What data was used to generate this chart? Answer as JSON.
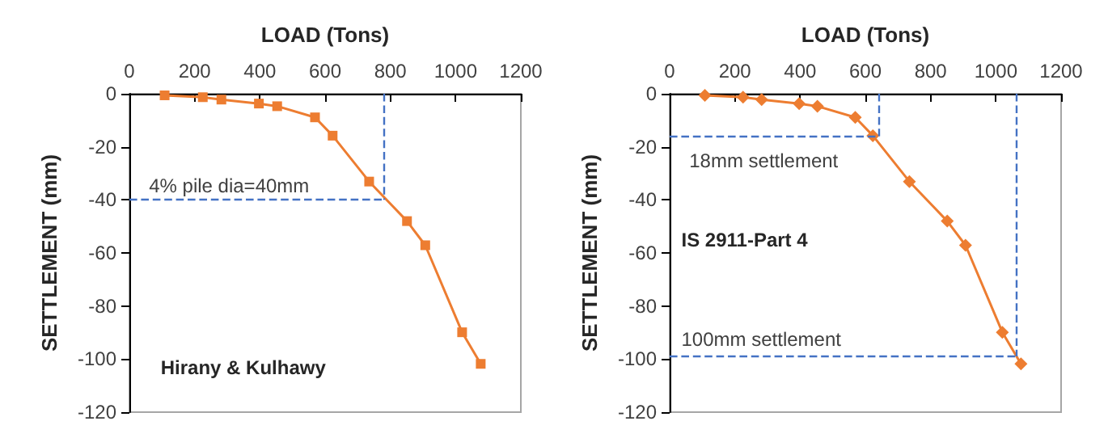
{
  "chart_data": [
    {
      "type": "line",
      "xlabel": "LOAD (Tons)",
      "ylabel": "SETTLEMENT (mm)",
      "x": [
        108,
        225,
        282,
        397,
        453,
        569,
        623,
        735,
        851,
        907,
        1020,
        1077
      ],
      "series": [
        {
          "color": "#ed7d31",
          "values": [
            -0.6,
            -1.3,
            -2.2,
            -3.7,
            -4.7,
            -8.9,
            -15.8,
            -33.1,
            -48,
            -57.1,
            -89.9,
            -101.8
          ]
        }
      ],
      "xlim": [
        0,
        1200
      ],
      "xticks": [
        0,
        200,
        400,
        600,
        800,
        1000,
        1200
      ],
      "ylim": [
        -120,
        0
      ],
      "yticks": [
        -120,
        -100,
        -80,
        -60,
        -40,
        -20,
        0
      ],
      "marker": "square",
      "ref_lines": [
        {
          "axis": "x",
          "value": 780,
          "color": "#4472c4",
          "line_style": "dashed"
        },
        {
          "axis": "y",
          "value": -40,
          "color": "#4472c4",
          "line_style": "dashed"
        }
      ],
      "annotations": [
        "4% pile dia=40mm",
        "Hirany & Kulhawy"
      ]
    },
    {
      "type": "line",
      "xlabel": "LOAD (Tons)",
      "ylabel": "SETTLEMENT (mm)",
      "x": [
        108,
        225,
        282,
        397,
        453,
        569,
        623,
        735,
        851,
        907,
        1020,
        1077
      ],
      "series": [
        {
          "color": "#ed7d31",
          "values": [
            -0.6,
            -1.3,
            -2.2,
            -3.7,
            -4.7,
            -8.9,
            -15.8,
            -33.1,
            -48,
            -57.1,
            -89.9,
            -101.8
          ]
        }
      ],
      "xlim": [
        0,
        1200
      ],
      "xticks": [
        0,
        200,
        400,
        600,
        800,
        1000,
        1200
      ],
      "ylim": [
        -120,
        0
      ],
      "yticks": [
        -120,
        -100,
        -80,
        -60,
        -40,
        -20,
        0
      ],
      "marker": "diamond",
      "ref_lines": [
        {
          "axis": "x",
          "value": 643,
          "color": "#4472c4",
          "line_style": "dashed"
        },
        {
          "axis": "y",
          "value": -16,
          "color": "#4472c4",
          "line_style": "dashed"
        },
        {
          "axis": "x",
          "value": 1060,
          "color": "#4472c4",
          "line_style": "dashed"
        },
        {
          "axis": "y",
          "value": -99,
          "color": "#4472c4",
          "line_style": "dashed"
        }
      ],
      "annotations": [
        "18mm settlement",
        "IS 2911-Part 4",
        "100mm settlement"
      ]
    }
  ]
}
